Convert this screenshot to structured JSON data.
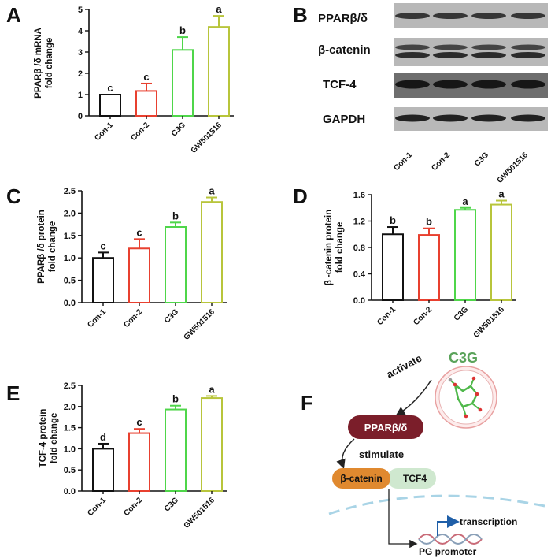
{
  "colors": {
    "Con-1": "#111111",
    "Con-2": "#e8402f",
    "C3G": "#4fd64a",
    "GW501516": "#b8c53b",
    "ppar_oval": "#7b1e2a",
    "beta_catenin_oval": "#e0892f",
    "tcf4_oval": "#cfe8cf",
    "c3g_text": "#5aa35a"
  },
  "panels": {
    "A": {
      "letter": "A"
    },
    "B": {
      "letter": "B",
      "blots": [
        {
          "label": "PPARβ/δ"
        },
        {
          "label": "β-catenin"
        },
        {
          "label": "TCF-4"
        },
        {
          "label": "GAPDH"
        }
      ],
      "lanes": [
        "Con-1",
        "Con-2",
        "C3G",
        "GW501516"
      ]
    },
    "C": {
      "letter": "C"
    },
    "D": {
      "letter": "D"
    },
    "E": {
      "letter": "E"
    },
    "F": {
      "letter": "F",
      "c3g": "C3G",
      "activate": "activate",
      "ppar": "PPARβ/δ",
      "stimulate": "stimulate",
      "beta_catenin": "β-catenin",
      "tcf4": "TCF4",
      "transcription": "transcription",
      "promoter": "PG promoter"
    }
  },
  "chart_data": [
    {
      "panel": "A",
      "type": "bar",
      "categories": [
        "Con-1",
        "Con-2",
        "C3G",
        "GW501516"
      ],
      "values": [
        1.0,
        1.17,
        3.1,
        4.18
      ],
      "errors": [
        0.0,
        0.35,
        0.6,
        0.52
      ],
      "significance": [
        "c",
        "c",
        "b",
        "a"
      ],
      "ylabel_lines": [
        "PPARβ /δ  mRNA",
        "fold change"
      ],
      "ylim": [
        0,
        5
      ],
      "yticks": [
        0,
        1,
        2,
        3,
        4,
        5
      ],
      "ytick_labels": [
        "0",
        "1",
        "2",
        "3",
        "4",
        "5"
      ]
    },
    {
      "panel": "C",
      "type": "bar",
      "categories": [
        "Con-1",
        "Con-2",
        "C3G",
        "GW501516"
      ],
      "values": [
        1.0,
        1.21,
        1.69,
        2.25
      ],
      "errors": [
        0.12,
        0.21,
        0.1,
        0.1
      ],
      "significance": [
        "c",
        "c",
        "b",
        "a"
      ],
      "ylabel_lines": [
        "PPARβ /δ  protein",
        "fold change"
      ],
      "ylim": [
        0,
        2.5
      ],
      "yticks": [
        0,
        0.5,
        1.0,
        1.5,
        2.0,
        2.5
      ],
      "ytick_labels": [
        "0.0",
        "0.5",
        "1.0",
        "1.5",
        "2.0",
        "2.5"
      ]
    },
    {
      "panel": "D",
      "type": "bar",
      "categories": [
        "Con-1",
        "Con-2",
        "C3G",
        "GW501516"
      ],
      "values": [
        1.0,
        0.99,
        1.37,
        1.45
      ],
      "errors": [
        0.11,
        0.1,
        0.03,
        0.06
      ],
      "significance": [
        "b",
        "b",
        "a",
        "a"
      ],
      "ylabel_lines": [
        "β -catenin protein",
        "fold change"
      ],
      "ylim": [
        0,
        1.6
      ],
      "yticks": [
        0,
        0.4,
        0.8,
        1.2,
        1.6
      ],
      "ytick_labels": [
        "0.0",
        "0.4",
        "0.8",
        "1.2",
        "1.6"
      ]
    },
    {
      "panel": "E",
      "type": "bar",
      "categories": [
        "Con-1",
        "Con-2",
        "C3G",
        "GW501516"
      ],
      "values": [
        1.0,
        1.37,
        1.93,
        2.2
      ],
      "errors": [
        0.12,
        0.1,
        0.09,
        0.05
      ],
      "significance": [
        "d",
        "c",
        "b",
        "a"
      ],
      "ylabel_lines": [
        "TCF-4 protein",
        "fold change"
      ],
      "ylim": [
        0,
        2.5
      ],
      "yticks": [
        0,
        0.5,
        1.0,
        1.5,
        2.0,
        2.5
      ],
      "ytick_labels": [
        "0.0",
        "0.5",
        "1.0",
        "1.5",
        "2.0",
        "2.5"
      ]
    }
  ]
}
